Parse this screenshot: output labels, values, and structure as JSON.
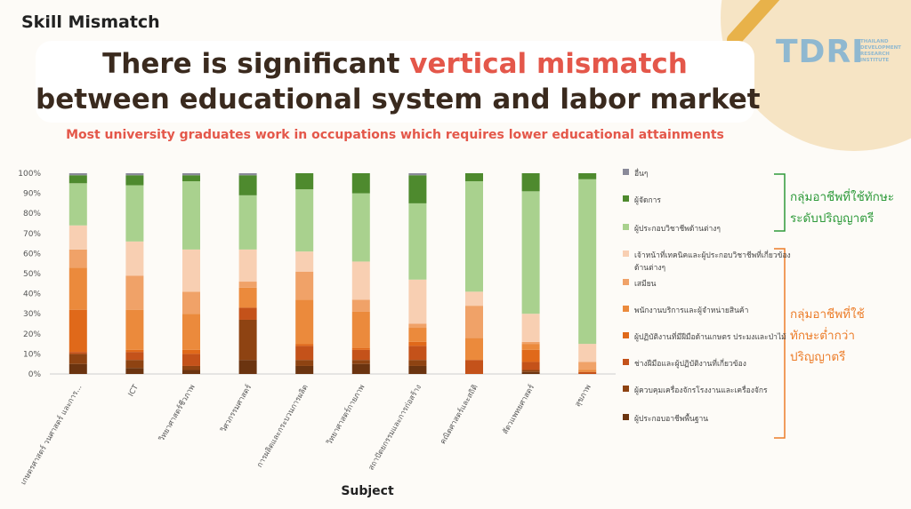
{
  "header": {
    "label": "Skill Mismatch",
    "headline_start": "There is significant ",
    "headline_accent": "vertical mismatch",
    "headline_line2": "between educational system and labor market",
    "subtitle": "Most university graduates work in occupations which requires lower educational attainments"
  },
  "logo": {
    "mark": "TDRI",
    "lines": [
      "THAILAND",
      "DEVELOPMENT",
      "RESEARCH",
      "INSTITUTE"
    ]
  },
  "annotations": {
    "degree_level": [
      "กลุ่มอาชีพที่ใช้ทักษะ",
      "ระดับปริญญาตรี"
    ],
    "below_degree": [
      "กลุ่มอาชีพที่ใช้",
      "ทักษะต่ำกว่า",
      "ปริญญาตรี"
    ]
  },
  "chart_data": {
    "type": "stacked_bar",
    "x_label": "Subject",
    "categories": [
      "เกษตรศาสตร์ วนศาสตร์ และการ...",
      "ICT",
      "วิทยาศาสตร์ชีวภาพ",
      "วิศวกรรมศาสตร์",
      "การผลิตและกระบวนการผลิต",
      "วิทยาศาสตร์กายภาพ",
      "สถาปัตยกรรมและการก่อสร้าง",
      "คณิตศาสตร์และสถิติ",
      "สัตวแพทยศาสตร์",
      "สุขภาพ"
    ],
    "ylim": [
      0,
      100
    ],
    "yticks": [
      {
        "value": 0,
        "label": "0%"
      },
      {
        "value": 10,
        "label": "10%"
      },
      {
        "value": 20,
        "label": "20%"
      },
      {
        "value": 30,
        "label": "30%"
      },
      {
        "value": 40,
        "label": "40%"
      },
      {
        "value": 50,
        "label": "50%"
      },
      {
        "value": 60,
        "label": "60%"
      },
      {
        "value": 70,
        "label": "70%"
      },
      {
        "value": 80,
        "label": "80%"
      },
      {
        "value": 90,
        "label": "90%"
      },
      {
        "value": 100,
        "label": "100%"
      }
    ],
    "series": [
      {
        "name": "ผู้ประกอบอาชีพพื้นฐาน",
        "color": "#6b3410",
        "values": [
          5,
          3,
          2,
          7,
          4,
          5,
          4,
          0,
          1,
          0
        ]
      },
      {
        "name": "ผู้ควบคุมเครื่องจักรโรงงานและเครื่องจักร",
        "color": "#8e4312",
        "values": [
          5,
          4,
          2,
          20,
          3,
          2,
          3,
          0,
          1,
          0
        ]
      },
      {
        "name": "ช่างฝีมือและผู้ปฏิบัติงานที่เกี่ยวข้อง",
        "color": "#c4521a",
        "values": [
          1,
          4,
          6,
          6,
          7,
          5,
          7,
          7,
          4,
          1
        ]
      },
      {
        "name": "ผู้ปฏิบัติงานที่มีฝีมือด้านเกษตร ประมงและป่าไม้",
        "color": "#e0691a",
        "values": [
          21,
          1,
          2,
          0,
          1,
          1,
          2,
          0,
          6,
          0
        ]
      },
      {
        "name": "พนักงานบริการและผู้จำหน่ายสินค้า",
        "color": "#eb8a3c",
        "values": [
          21,
          20,
          18,
          10,
          22,
          18,
          7,
          11,
          3,
          1
        ]
      },
      {
        "name": "เสมียน",
        "color": "#f0a268",
        "values": [
          9,
          17,
          11,
          3,
          14,
          6,
          2,
          16,
          1,
          4
        ]
      },
      {
        "name": "เจ้าหน้าที่เทคนิคและผู้ประกอบวิชาชีพที่เกี่ยวข้องด้านต่างๆ",
        "color": "#f8cfb2",
        "values": [
          12,
          17,
          21,
          16,
          10,
          19,
          22,
          7,
          14,
          9
        ]
      },
      {
        "name": "ผู้ประกอบวิชาชีพด้านต่างๆ",
        "color": "#a9d18e",
        "values": [
          21,
          28,
          34,
          27,
          31,
          34,
          38,
          55,
          61,
          82
        ]
      },
      {
        "name": "ผู้จัดการ",
        "color": "#4e8a2e",
        "values": [
          4,
          5,
          3,
          10,
          8,
          10,
          14,
          4,
          9,
          3
        ]
      },
      {
        "name": "อื่นๆ",
        "color": "#8a8a99",
        "values": [
          1,
          1,
          1,
          1,
          0,
          0,
          1,
          0,
          0,
          0
        ]
      }
    ]
  }
}
